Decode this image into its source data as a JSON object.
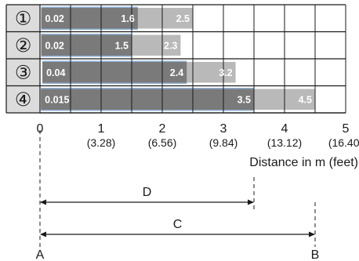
{
  "chart_data": {
    "type": "bar",
    "categories": [
      "①",
      "②",
      "③",
      "④"
    ],
    "series": [
      {
        "values": [
          0.02,
          0.02,
          0.04,
          0.015
        ]
      },
      {
        "values": [
          1.6,
          1.5,
          2.4,
          3.5
        ]
      },
      {
        "values": [
          2.5,
          2.3,
          3.2,
          4.5
        ]
      }
    ],
    "value_labels": {
      "start": [
        "0.02",
        "0.02",
        "0.04",
        "0.015"
      ],
      "mid": [
        "1.6",
        "1.5",
        "2.4",
        "3.5"
      ],
      "max": [
        "2.5",
        "2.3",
        "3.2",
        "4.5"
      ]
    },
    "xlim": [
      0,
      5
    ],
    "x_ticks": [
      0,
      1,
      2,
      3,
      4,
      5
    ],
    "x_tick_labels": [
      "0",
      "1",
      "2",
      "3",
      "4",
      "5"
    ],
    "x_tick_feet_labels": [
      "(3.28)",
      "(6.56)",
      "(9.84)",
      "(13.12)",
      "(16.40)"
    ],
    "xlabel": "Distance in m (feet)",
    "grid": true,
    "dimensions": [
      {
        "label": "D",
        "from": 0,
        "to": 3.5
      },
      {
        "label": "C",
        "from": 0,
        "to": 4.5
      }
    ],
    "points": [
      {
        "label": "A",
        "x": 0
      },
      {
        "label": "B",
        "x": 4.5
      }
    ],
    "colors": {
      "dark": "#7a7a7a",
      "light": "#b9b9b9",
      "accent": "#8fb2d6",
      "grid": "#1a1a1a",
      "row_label_bg": "#dcdcdc"
    }
  }
}
